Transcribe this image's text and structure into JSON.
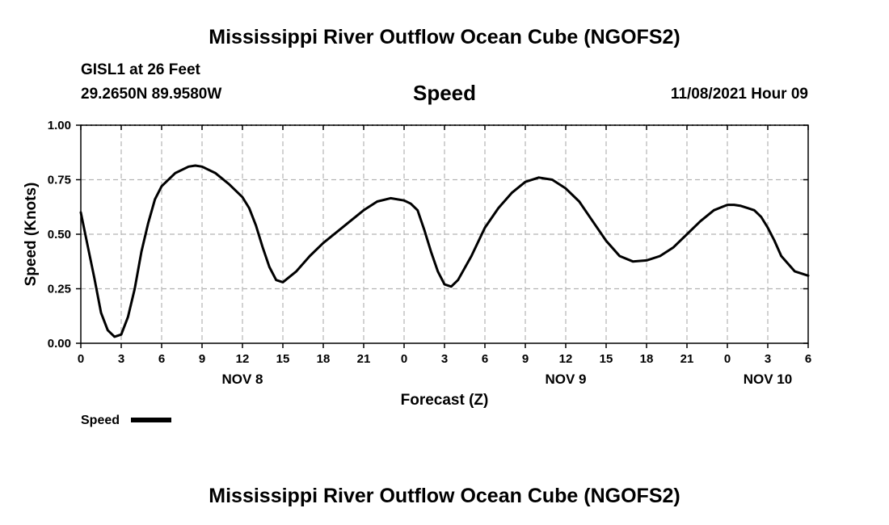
{
  "page": {
    "title": "Mississippi River Outflow Ocean Cube (NGOFS2)",
    "footer_title": "Mississippi River Outflow Ocean Cube (NGOFS2)",
    "station": "GISL1 at 26 Feet",
    "coords": "29.2650N  89.9580W",
    "variable": "Speed",
    "datetime": "11/08/2021 Hour 09"
  },
  "chart_data": {
    "type": "line",
    "title": "Speed",
    "xlabel": "Forecast (Z)",
    "ylabel": "Speed (Knots)",
    "xlim": [
      0,
      54
    ],
    "ylim": [
      0,
      1
    ],
    "grid": true,
    "x_ticks": [
      0,
      3,
      6,
      9,
      12,
      15,
      18,
      21,
      24,
      27,
      30,
      33,
      36,
      39,
      42,
      45,
      48,
      51,
      54
    ],
    "x_tick_labels": [
      "0",
      "3",
      "6",
      "9",
      "12",
      "15",
      "18",
      "21",
      "0",
      "3",
      "6",
      "9",
      "12",
      "15",
      "18",
      "21",
      "0",
      "3",
      "6"
    ],
    "y_ticks": [
      0,
      0.25,
      0.5,
      0.75,
      1.0
    ],
    "y_tick_labels": [
      "0.00",
      "0.25",
      "0.50",
      "0.75",
      "1.00"
    ],
    "date_labels": [
      {
        "x": 12,
        "label": "NOV 8"
      },
      {
        "x": 36,
        "label": "NOV 9"
      },
      {
        "x": 51,
        "label": "NOV 10"
      }
    ],
    "legend": {
      "label": "Speed",
      "position": "bottom-left"
    },
    "series": [
      {
        "name": "Speed",
        "color": "#000000",
        "x": [
          0,
          0.5,
          1,
          1.5,
          2,
          2.5,
          3,
          3.5,
          4,
          4.5,
          5,
          5.5,
          6,
          7,
          8,
          8.5,
          9,
          10,
          11,
          12,
          12.5,
          13,
          13.5,
          14,
          14.5,
          15,
          16,
          17,
          18,
          19,
          20,
          21,
          22,
          23,
          24,
          24.5,
          25,
          25.5,
          26,
          26.5,
          27,
          27.5,
          28,
          29,
          30,
          31,
          32,
          33,
          34,
          35,
          36,
          37,
          38,
          39,
          40,
          41,
          42,
          43,
          44,
          45,
          46,
          47,
          48,
          48.5,
          49,
          49.5,
          50,
          50.5,
          51,
          51.5,
          52,
          53,
          54
        ],
        "values": [
          0.6,
          0.45,
          0.3,
          0.14,
          0.06,
          0.03,
          0.04,
          0.12,
          0.25,
          0.42,
          0.55,
          0.66,
          0.72,
          0.78,
          0.81,
          0.815,
          0.81,
          0.78,
          0.73,
          0.67,
          0.62,
          0.54,
          0.44,
          0.35,
          0.29,
          0.28,
          0.33,
          0.4,
          0.46,
          0.51,
          0.56,
          0.61,
          0.65,
          0.665,
          0.655,
          0.64,
          0.61,
          0.52,
          0.42,
          0.33,
          0.27,
          0.26,
          0.29,
          0.4,
          0.53,
          0.62,
          0.69,
          0.74,
          0.76,
          0.75,
          0.71,
          0.65,
          0.56,
          0.47,
          0.4,
          0.375,
          0.38,
          0.4,
          0.44,
          0.5,
          0.56,
          0.61,
          0.635,
          0.635,
          0.63,
          0.62,
          0.61,
          0.58,
          0.53,
          0.47,
          0.4,
          0.33,
          0.31
        ]
      }
    ]
  }
}
